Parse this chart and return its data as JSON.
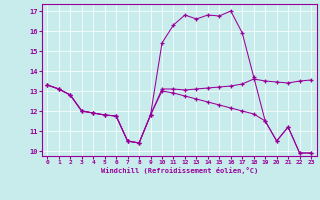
{
  "background_color": "#c8ecec",
  "line_color": "#990099",
  "xlim": [
    -0.5,
    23.5
  ],
  "ylim": [
    9.75,
    17.35
  ],
  "yticks": [
    10,
    11,
    12,
    13,
    14,
    15,
    16,
    17
  ],
  "xticks": [
    0,
    1,
    2,
    3,
    4,
    5,
    6,
    7,
    8,
    9,
    10,
    11,
    12,
    13,
    14,
    15,
    16,
    17,
    18,
    19,
    20,
    21,
    22,
    23
  ],
  "xlabel": "Windchill (Refroidissement éolien,°C)",
  "line1_y": [
    13.3,
    13.1,
    12.8,
    12.0,
    11.9,
    11.8,
    11.75,
    10.5,
    10.4,
    11.8,
    13.1,
    13.1,
    13.05,
    13.1,
    13.15,
    13.2,
    13.25,
    13.35,
    13.6,
    13.5,
    13.45,
    13.4,
    13.5,
    13.55
  ],
  "line2_y": [
    13.3,
    13.1,
    12.8,
    12.0,
    11.9,
    11.8,
    11.75,
    10.5,
    10.4,
    11.8,
    15.4,
    16.3,
    16.8,
    16.6,
    16.8,
    16.75,
    17.0,
    15.9,
    13.7,
    11.5,
    10.5,
    11.2,
    9.9,
    9.9
  ],
  "line3_y": [
    13.3,
    13.1,
    12.8,
    12.0,
    11.9,
    11.8,
    11.75,
    10.5,
    10.4,
    11.8,
    13.0,
    12.9,
    12.75,
    12.6,
    12.45,
    12.3,
    12.15,
    12.0,
    11.85,
    11.5,
    10.5,
    11.2,
    9.9,
    9.9
  ]
}
